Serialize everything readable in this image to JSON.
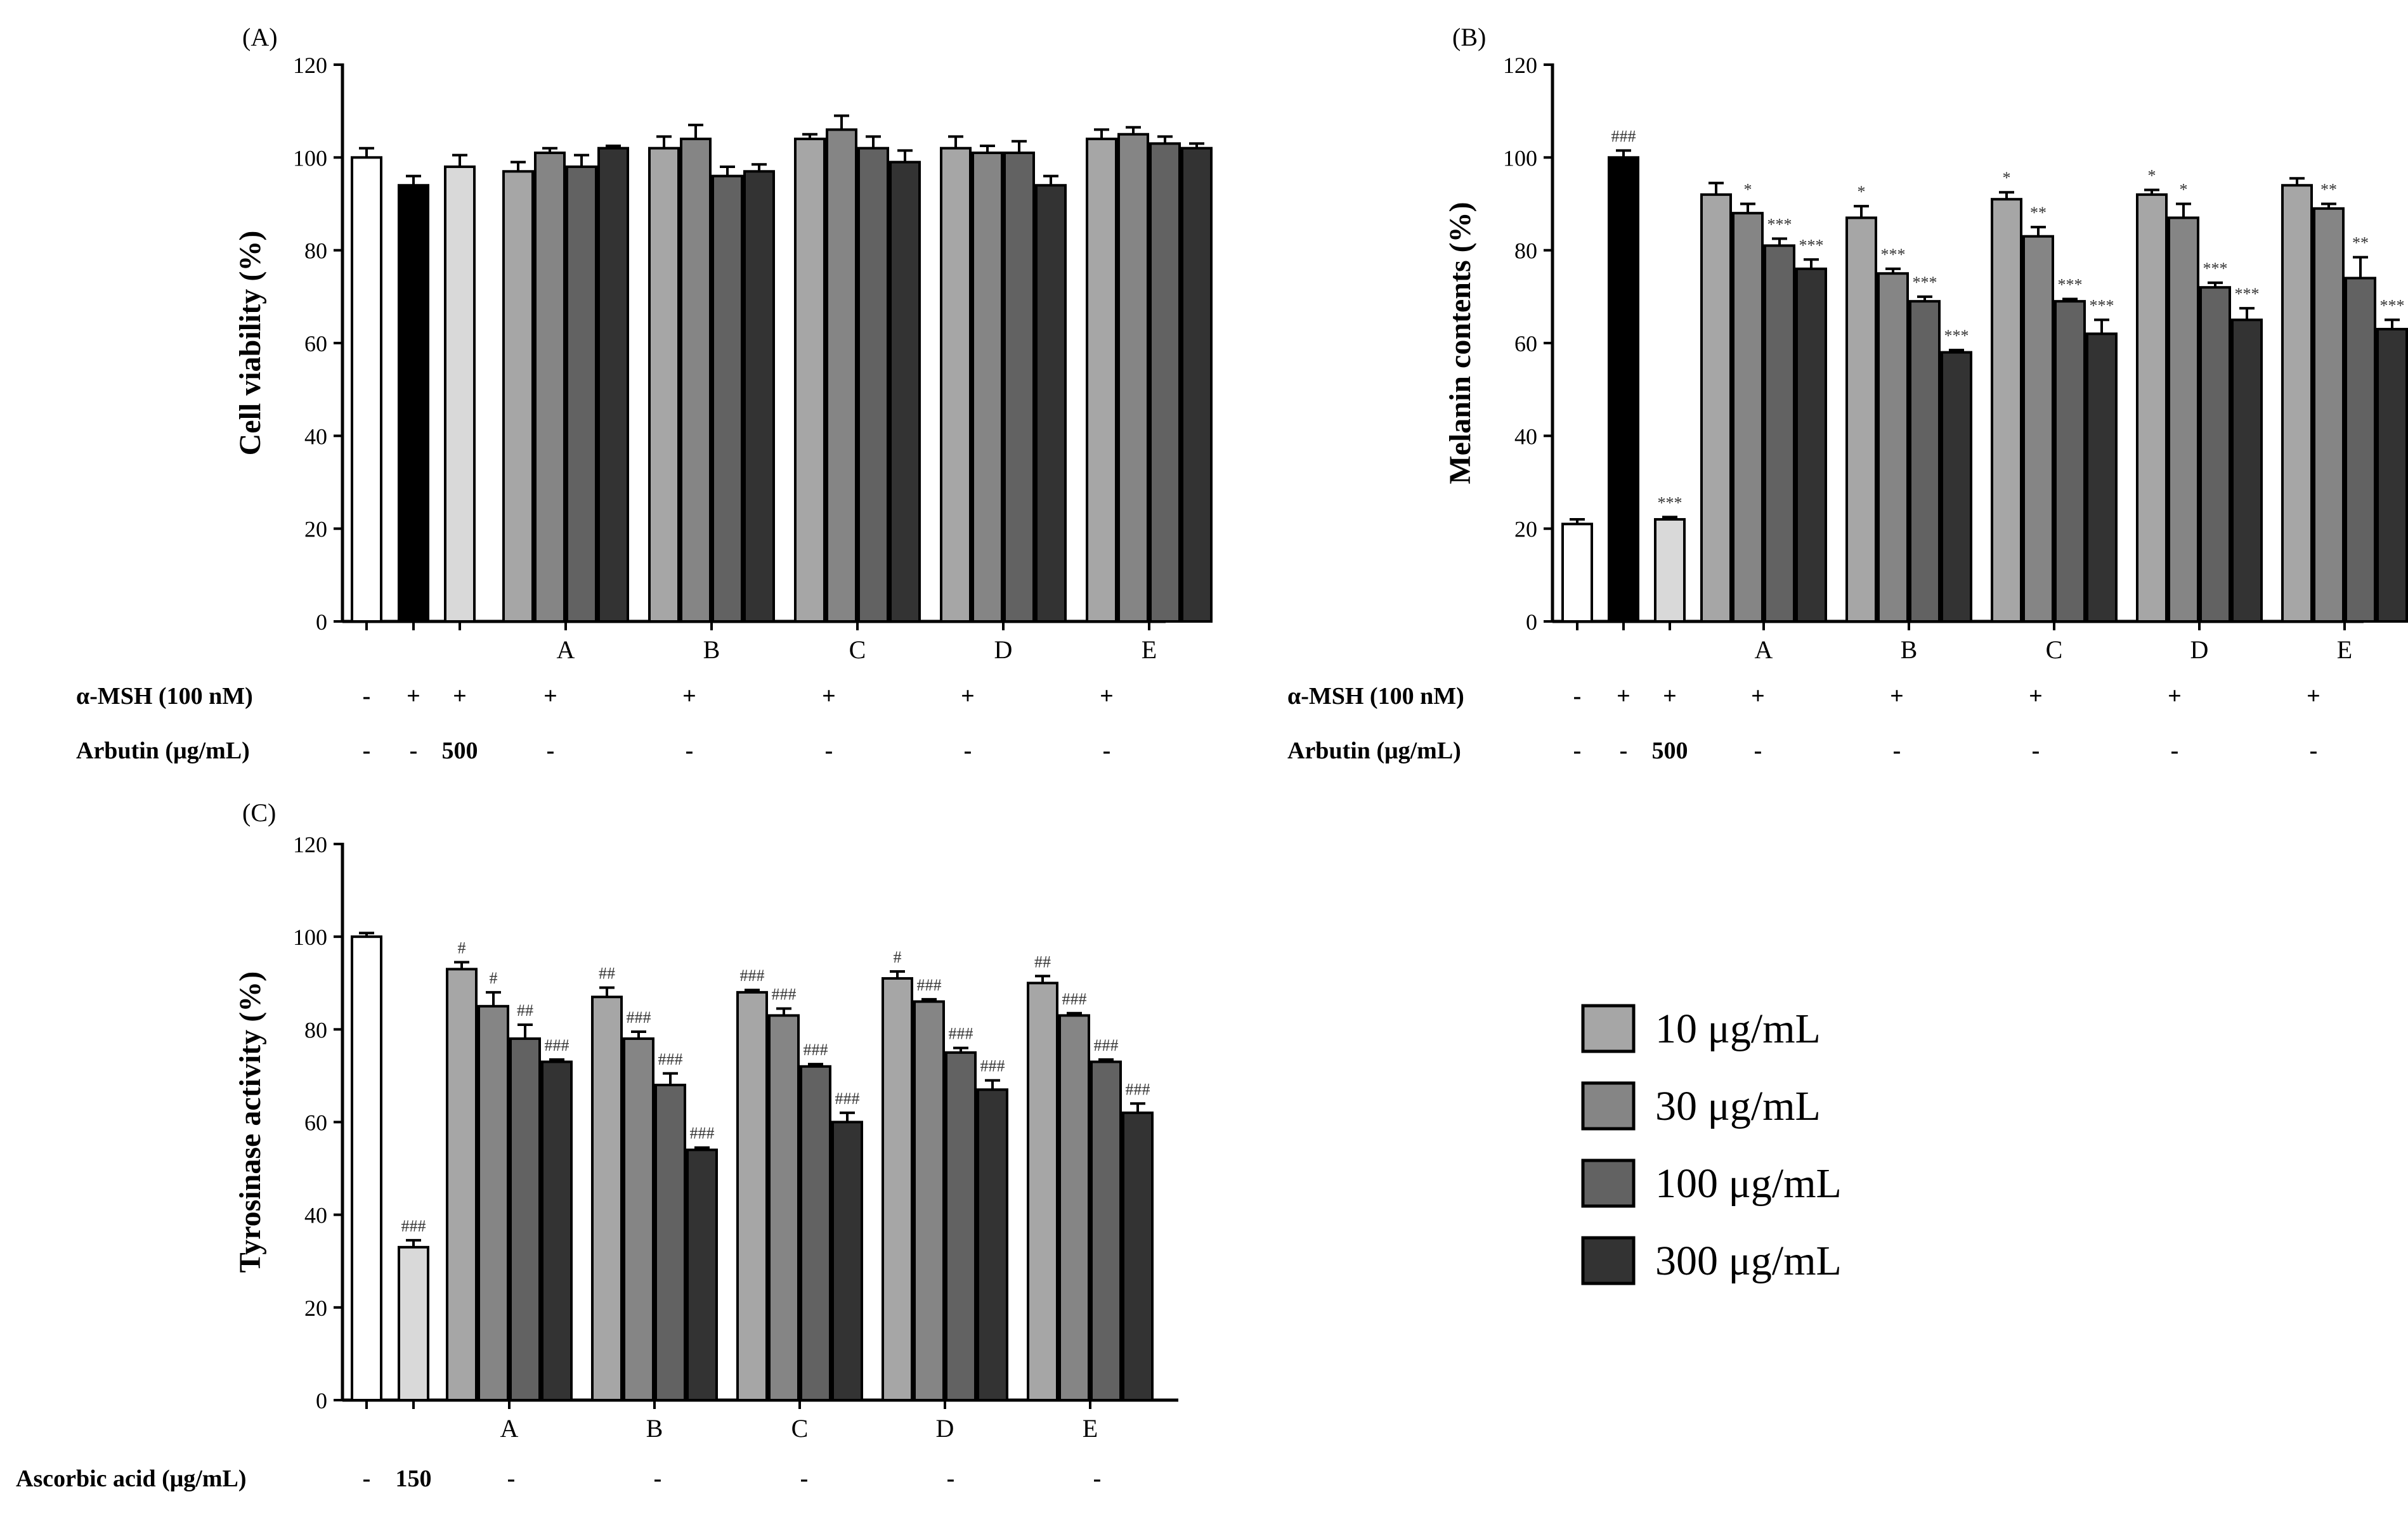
{
  "legend": {
    "entries": [
      {
        "label": "10 μg/mL",
        "color": "#a6a6a6"
      },
      {
        "label": "30 μg/mL",
        "color": "#858585"
      },
      {
        "label": "100 μg/mL",
        "color": "#626262"
      },
      {
        "label": "300 μg/mL",
        "color": "#333333"
      }
    ]
  },
  "chart_data": [
    {
      "type": "bar",
      "panel_label": "(A)",
      "ylabel": "Cell viability (%)",
      "ylim": [
        0,
        120
      ],
      "yticks": [
        0,
        20,
        40,
        60,
        80,
        100,
        120
      ],
      "controls": [
        {
          "value": 100,
          "error": 2.0,
          "color": "#ffffff",
          "annotation": ""
        },
        {
          "value": 94,
          "error": 2.0,
          "color": "#000000",
          "annotation": ""
        },
        {
          "value": 98,
          "error": 2.5,
          "color": "#d9d9d9",
          "annotation": ""
        }
      ],
      "categories": [
        "A",
        "B",
        "C",
        "D",
        "E"
      ],
      "series": [
        {
          "name": "10 μg/mL",
          "values": [
            97,
            102,
            104,
            102,
            104
          ],
          "errors": [
            2,
            2.5,
            1,
            2.5,
            2
          ],
          "annotations": [
            "",
            "",
            "",
            "",
            ""
          ]
        },
        {
          "name": "30 μg/mL",
          "values": [
            101,
            104,
            106,
            101,
            105
          ],
          "errors": [
            1,
            3,
            3,
            1.5,
            1.5
          ],
          "annotations": [
            "",
            "",
            "",
            "",
            ""
          ]
        },
        {
          "name": "100 μg/mL",
          "values": [
            98,
            96,
            102,
            101,
            103
          ],
          "errors": [
            2.5,
            2,
            2.5,
            2.5,
            1.5
          ],
          "annotations": [
            "",
            "",
            "",
            "",
            ""
          ]
        },
        {
          "name": "300 μg/mL",
          "values": [
            102,
            97,
            99,
            94,
            102
          ],
          "errors": [
            0.5,
            1.5,
            2.5,
            2,
            1
          ],
          "annotations": [
            "",
            "",
            "",
            "",
            ""
          ]
        }
      ],
      "treatment_rows": [
        {
          "label": "α-MSH (100 nM)",
          "values": [
            "-",
            "+",
            "+",
            "+",
            "+",
            "+",
            "+",
            "+"
          ]
        },
        {
          "label": "Arbutin (μg/mL)",
          "values": [
            "-",
            "-",
            "500",
            "-",
            "-",
            "-",
            "-",
            "-"
          ]
        }
      ]
    },
    {
      "type": "bar",
      "panel_label": "(B)",
      "ylabel": "Melanin contents (%)",
      "ylim": [
        0,
        120
      ],
      "yticks": [
        0,
        20,
        40,
        60,
        80,
        100,
        120
      ],
      "controls": [
        {
          "value": 21,
          "error": 1.0,
          "color": "#ffffff",
          "annotation": ""
        },
        {
          "value": 100,
          "error": 1.5,
          "color": "#000000",
          "annotation": "###"
        },
        {
          "value": 22,
          "error": 0.5,
          "color": "#d9d9d9",
          "annotation": "***"
        }
      ],
      "categories": [
        "A",
        "B",
        "C",
        "D",
        "E"
      ],
      "series": [
        {
          "name": "10 μg/mL",
          "values": [
            92,
            87,
            91,
            92,
            94
          ],
          "errors": [
            2.5,
            2.5,
            1.5,
            1,
            1.5
          ],
          "annotations": [
            "",
            "*",
            "*",
            "*",
            ""
          ]
        },
        {
          "name": "30 μg/mL",
          "values": [
            88,
            75,
            83,
            87,
            89
          ],
          "errors": [
            2,
            1,
            2,
            3,
            1
          ],
          "annotations": [
            "*",
            "***",
            "**",
            "*",
            "**"
          ]
        },
        {
          "name": "100 μg/mL",
          "values": [
            81,
            69,
            69,
            72,
            74
          ],
          "errors": [
            1.5,
            1,
            0.5,
            1,
            4.5
          ],
          "annotations": [
            "***",
            "***",
            "***",
            "***",
            "**"
          ]
        },
        {
          "name": "300 μg/mL",
          "values": [
            76,
            58,
            62,
            65,
            63
          ],
          "errors": [
            2,
            0.5,
            3,
            2.5,
            2
          ],
          "annotations": [
            "***",
            "***",
            "***",
            "***",
            "***"
          ]
        }
      ],
      "treatment_rows": [
        {
          "label": "α-MSH (100 nM)",
          "values": [
            "-",
            "+",
            "+",
            "+",
            "+",
            "+",
            "+",
            "+"
          ]
        },
        {
          "label": "Arbutin (μg/mL)",
          "values": [
            "-",
            "-",
            "500",
            "-",
            "-",
            "-",
            "-",
            "-"
          ]
        }
      ]
    },
    {
      "type": "bar",
      "panel_label": "(C)",
      "ylabel": "Tyrosinase activity (%)",
      "ylim": [
        0,
        120
      ],
      "yticks": [
        0,
        20,
        40,
        60,
        80,
        100,
        120
      ],
      "controls": [
        {
          "value": 100,
          "error": 0.8,
          "color": "#ffffff",
          "annotation": ""
        },
        {
          "value": 33,
          "error": 1.5,
          "color": "#d9d9d9",
          "annotation": "###"
        }
      ],
      "categories": [
        "A",
        "B",
        "C",
        "D",
        "E"
      ],
      "series": [
        {
          "name": "10 μg/mL",
          "values": [
            93,
            87,
            88,
            91,
            90
          ],
          "errors": [
            1.5,
            2,
            0.5,
            1.5,
            1.5
          ],
          "annotations": [
            "#",
            "##",
            "###",
            "#",
            "##"
          ]
        },
        {
          "name": "30 μg/mL",
          "values": [
            85,
            78,
            83,
            86,
            83
          ],
          "errors": [
            3,
            1.5,
            1.5,
            0.5,
            0.5
          ],
          "annotations": [
            "#",
            "###",
            "###",
            "###",
            "###"
          ]
        },
        {
          "name": "100 μg/mL",
          "values": [
            78,
            68,
            72,
            75,
            73
          ],
          "errors": [
            3,
            2.5,
            0.5,
            1,
            0.5
          ],
          "annotations": [
            "##",
            "###",
            "###",
            "###",
            "###"
          ]
        },
        {
          "name": "300 μg/mL",
          "values": [
            73,
            54,
            60,
            67,
            62
          ],
          "errors": [
            0.5,
            0.5,
            2,
            2,
            2
          ],
          "annotations": [
            "###",
            "###",
            "###",
            "###",
            "###"
          ]
        }
      ],
      "treatment_rows": [
        {
          "label": "Ascorbic acid (μg/mL)",
          "values": [
            "-",
            "150",
            "-",
            "-",
            "-",
            "-",
            "-"
          ]
        }
      ]
    }
  ]
}
